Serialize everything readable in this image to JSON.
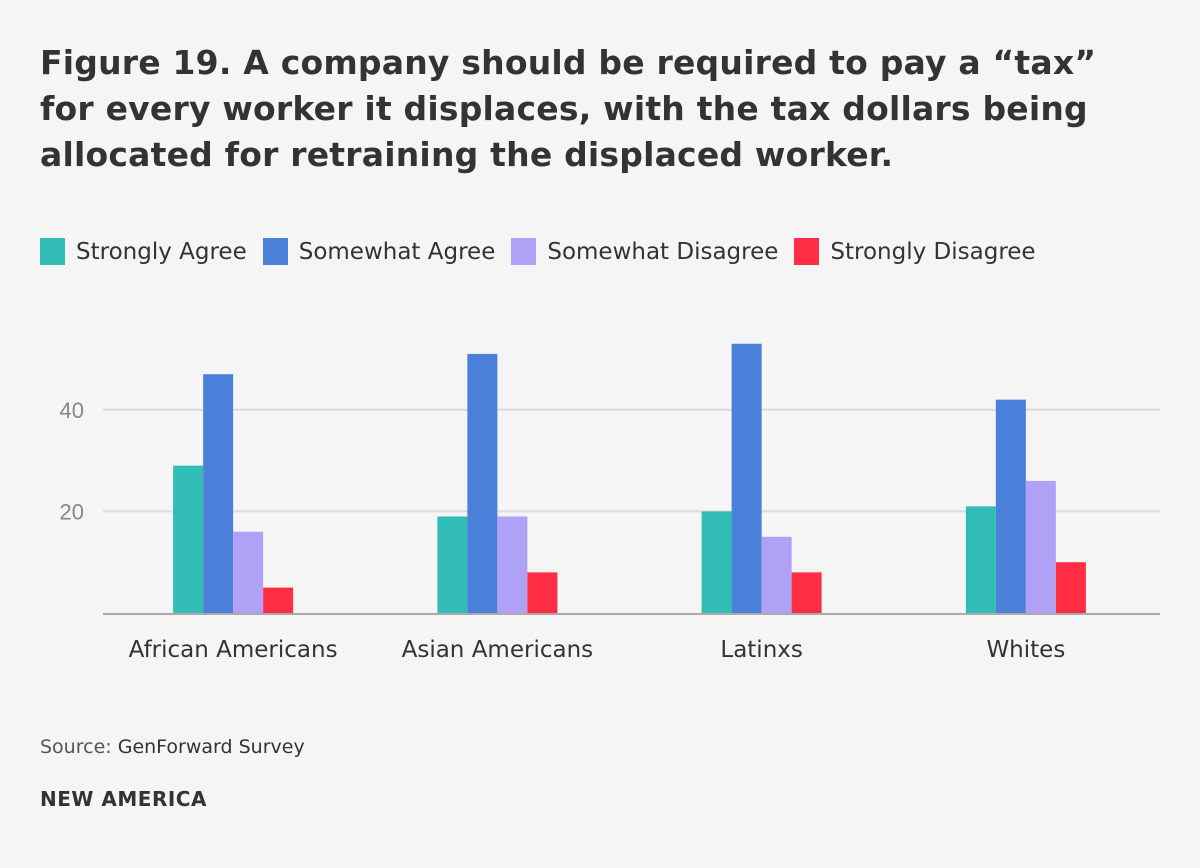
{
  "chart_data": {
    "type": "bar",
    "title": "Figure 19. A company should be required to pay a “tax” for every worker it displaces, with the tax dollars being allocated for retraining the displaced worker.",
    "categories": [
      "African Americans",
      "Asian Americans",
      "Latinxs",
      "Whites"
    ],
    "series": [
      {
        "name": "Strongly Agree",
        "color": "#31bdb5",
        "values": [
          29,
          19,
          20,
          21
        ]
      },
      {
        "name": "Somewhat Agree",
        "color": "#4a80d9",
        "values": [
          47,
          51,
          53,
          42
        ]
      },
      {
        "name": "Somewhat Disagree",
        "color": "#afa2f6",
        "values": [
          16,
          19,
          15,
          26
        ]
      },
      {
        "name": "Strongly Disagree",
        "color": "#ff2e45",
        "values": [
          5,
          8,
          8,
          10
        ]
      }
    ],
    "yticks": [
      20,
      40
    ],
    "ylim": [
      0,
      60
    ],
    "xlabel": "",
    "ylabel": "",
    "grid": true,
    "legend": "top-left"
  },
  "source_label": "Source:",
  "source_value": "GenForward Survey",
  "brand": "NEW AMERICA"
}
